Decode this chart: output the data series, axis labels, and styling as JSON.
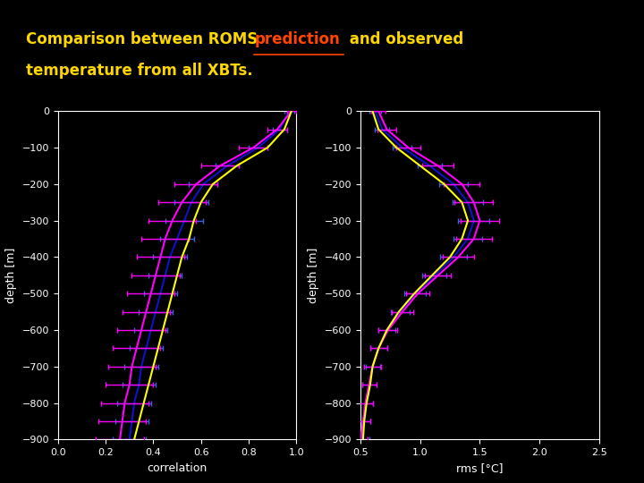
{
  "background_color": "#000000",
  "axes_bg_color": "#000000",
  "text_color": "#FFFFFF",
  "depth_min": -900,
  "depth_max": 0,
  "depth_ticks": [
    0,
    -100,
    -200,
    -300,
    -400,
    -500,
    -600,
    -700,
    -800,
    -900
  ],
  "corr_xlim": [
    0,
    1
  ],
  "corr_xticks": [
    0,
    0.2,
    0.4,
    0.6,
    0.8,
    1.0
  ],
  "rms_xlim": [
    0.5,
    2.5
  ],
  "rms_xticks": [
    0.5,
    1.0,
    1.5,
    2.0,
    2.5
  ],
  "xlabel_corr": "correlation",
  "xlabel_rms": "rms [°C]",
  "ylabel": "depth [m]",
  "line_yellow": "#FFFF00",
  "line_magenta": "#FF00FF",
  "line_blue": "#1010CC",
  "errorbar_color_magenta": "#FF00FF",
  "errorbar_color_blue": "#4060DD",
  "title_text1": "Comparison between ROMS ",
  "title_pred": "prediction",
  "title_text2": " and observed",
  "title_line2": "temperature from all XBTs.",
  "title_color1": "#FFD700",
  "title_color_pred": "#FF4500",
  "title_fontsize": 12,
  "axis_label_fontsize": 9,
  "tick_fontsize": 8,
  "depths": [
    0,
    -50,
    -100,
    -150,
    -200,
    -250,
    -300,
    -350,
    -400,
    -450,
    -500,
    -550,
    -600,
    -650,
    -700,
    -750,
    -800,
    -850,
    -900
  ],
  "corr_yellow": [
    0.98,
    0.95,
    0.88,
    0.75,
    0.65,
    0.6,
    0.57,
    0.55,
    0.52,
    0.5,
    0.48,
    0.46,
    0.44,
    0.42,
    0.4,
    0.38,
    0.36,
    0.34,
    0.32
  ],
  "corr_magenta": [
    0.98,
    0.92,
    0.82,
    0.68,
    0.58,
    0.52,
    0.48,
    0.45,
    0.43,
    0.41,
    0.39,
    0.37,
    0.35,
    0.33,
    0.31,
    0.3,
    0.28,
    0.27,
    0.26
  ],
  "corr_blue": [
    0.97,
    0.93,
    0.84,
    0.71,
    0.61,
    0.56,
    0.53,
    0.5,
    0.47,
    0.45,
    0.43,
    0.41,
    0.39,
    0.37,
    0.35,
    0.34,
    0.32,
    0.31,
    0.3
  ],
  "corr_blue_err": [
    0.02,
    0.03,
    0.04,
    0.05,
    0.06,
    0.07,
    0.08,
    0.07,
    0.07,
    0.07,
    0.07,
    0.07,
    0.07,
    0.07,
    0.07,
    0.07,
    0.07,
    0.07,
    0.07
  ],
  "corr_magenta_err": [
    0.02,
    0.04,
    0.06,
    0.08,
    0.09,
    0.1,
    0.1,
    0.1,
    0.1,
    0.1,
    0.1,
    0.1,
    0.1,
    0.1,
    0.1,
    0.1,
    0.1,
    0.1,
    0.1
  ],
  "rms_yellow": [
    0.6,
    0.65,
    0.8,
    1.0,
    1.2,
    1.35,
    1.4,
    1.35,
    1.25,
    1.1,
    0.95,
    0.82,
    0.72,
    0.65,
    0.6,
    0.58,
    0.55,
    0.53,
    0.52
  ],
  "rms_magenta": [
    0.65,
    0.72,
    0.9,
    1.15,
    1.35,
    1.45,
    1.5,
    1.45,
    1.32,
    1.15,
    0.98,
    0.85,
    0.73,
    0.65,
    0.6,
    0.57,
    0.54,
    0.52,
    0.5
  ],
  "rms_blue": [
    0.62,
    0.68,
    0.85,
    1.08,
    1.28,
    1.4,
    1.45,
    1.4,
    1.28,
    1.12,
    0.96,
    0.83,
    0.72,
    0.65,
    0.6,
    0.57,
    0.54,
    0.52,
    0.51
  ],
  "rms_blue_err": [
    0.05,
    0.06,
    0.08,
    0.1,
    0.12,
    0.13,
    0.13,
    0.12,
    0.11,
    0.1,
    0.09,
    0.08,
    0.07,
    0.07,
    0.06,
    0.06,
    0.06,
    0.06,
    0.06
  ],
  "rms_magenta_err": [
    0.06,
    0.08,
    0.1,
    0.13,
    0.15,
    0.16,
    0.16,
    0.15,
    0.13,
    0.11,
    0.1,
    0.09,
    0.08,
    0.07,
    0.07,
    0.06,
    0.06,
    0.06,
    0.06
  ]
}
